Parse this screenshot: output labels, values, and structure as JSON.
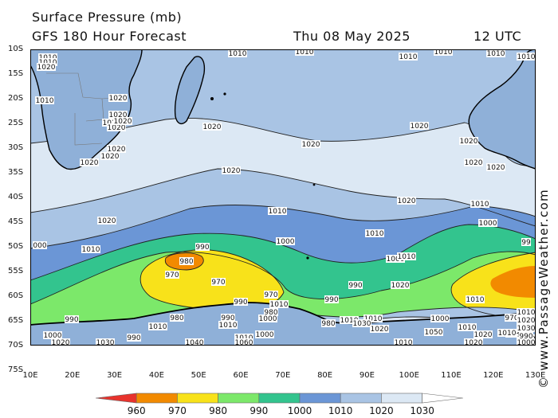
{
  "header": {
    "title": "Surface Pressure (mb)",
    "model": "GFS 180 Hour Forecast",
    "date": "Thu 08 May 2025",
    "time": "12 UTC"
  },
  "axes": {
    "lat_labels": [
      "10S",
      "15S",
      "20S",
      "25S",
      "30S",
      "35S",
      "40S",
      "45S",
      "50S",
      "55S",
      "60S",
      "65S",
      "70S",
      "75S"
    ],
    "lon_labels": [
      "10E",
      "20E",
      "30E",
      "40E",
      "50E",
      "60E",
      "70E",
      "80E",
      "90E",
      "100E",
      "110E",
      "120E",
      "130E"
    ]
  },
  "credit": "© www.PassageWeather.com",
  "legend": {
    "labels": [
      "960",
      "970",
      "980",
      "990",
      "1000",
      "1010",
      "1020",
      "1030"
    ],
    "colors": [
      "#e8332d",
      "#f28a00",
      "#f8e21a",
      "#7ce86a",
      "#33c48e",
      "#6b96d6",
      "#a9c4e4",
      "#dce8f4",
      "#ffffff"
    ]
  },
  "isobars": {
    "labels": [
      {
        "t": "1010"
      },
      {
        "t": "1010"
      },
      {
        "t": "1020"
      },
      {
        "t": "1010"
      },
      {
        "t": "1010"
      },
      {
        "t": "1010"
      },
      {
        "t": "1010"
      },
      {
        "t": "1010"
      },
      {
        "t": "1010"
      },
      {
        "t": "1010"
      },
      {
        "t": "1020"
      },
      {
        "t": "1020"
      },
      {
        "t": "1020"
      },
      {
        "t": "1020"
      },
      {
        "t": "1020"
      },
      {
        "t": "1020"
      },
      {
        "t": "1020"
      },
      {
        "t": "1020"
      },
      {
        "t": "1020"
      },
      {
        "t": "1020"
      },
      {
        "t": "1020"
      },
      {
        "t": "1020"
      },
      {
        "t": "1020"
      },
      {
        "t": "1020"
      },
      {
        "t": "1020"
      },
      {
        "t": "1020"
      },
      {
        "t": "1020"
      },
      {
        "t": "1010"
      },
      {
        "t": "1010"
      },
      {
        "t": "1010"
      },
      {
        "t": "1000"
      },
      {
        "t": "000"
      },
      {
        "t": "1010"
      },
      {
        "t": "1000"
      },
      {
        "t": "1000"
      },
      {
        "t": "99"
      },
      {
        "t": "990"
      },
      {
        "t": "980"
      },
      {
        "t": "970"
      },
      {
        "t": "970"
      },
      {
        "t": "970"
      },
      {
        "t": "990"
      },
      {
        "t": "980"
      },
      {
        "t": "980"
      },
      {
        "t": "990"
      },
      {
        "t": "990"
      },
      {
        "t": "980"
      },
      {
        "t": "970"
      },
      {
        "t": "990"
      },
      {
        "t": "990"
      },
      {
        "t": "990"
      },
      {
        "t": "1000"
      },
      {
        "t": "1000"
      },
      {
        "t": "1010"
      },
      {
        "t": "1010"
      },
      {
        "t": "1010"
      },
      {
        "t": "1000"
      },
      {
        "t": "1010"
      },
      {
        "t": "1010"
      },
      {
        "t": "1020"
      },
      {
        "t": "1030"
      },
      {
        "t": "1010"
      },
      {
        "t": "1020"
      },
      {
        "t": "1030"
      },
      {
        "t": "1040"
      },
      {
        "t": "1050"
      },
      {
        "t": "1010"
      },
      {
        "t": "1020"
      },
      {
        "t": "1030"
      },
      {
        "t": "1050"
      },
      {
        "t": "1060"
      },
      {
        "t": "1020"
      },
      {
        "t": "1010"
      },
      {
        "t": "1010"
      },
      {
        "t": "1020"
      },
      {
        "t": "1030"
      },
      {
        "t": "990"
      },
      {
        "t": "1000"
      },
      {
        "t": "1010"
      },
      {
        "t": "1000"
      },
      {
        "t": "1010"
      },
      {
        "t": "1020"
      },
      {
        "t": "1010"
      }
    ]
  }
}
